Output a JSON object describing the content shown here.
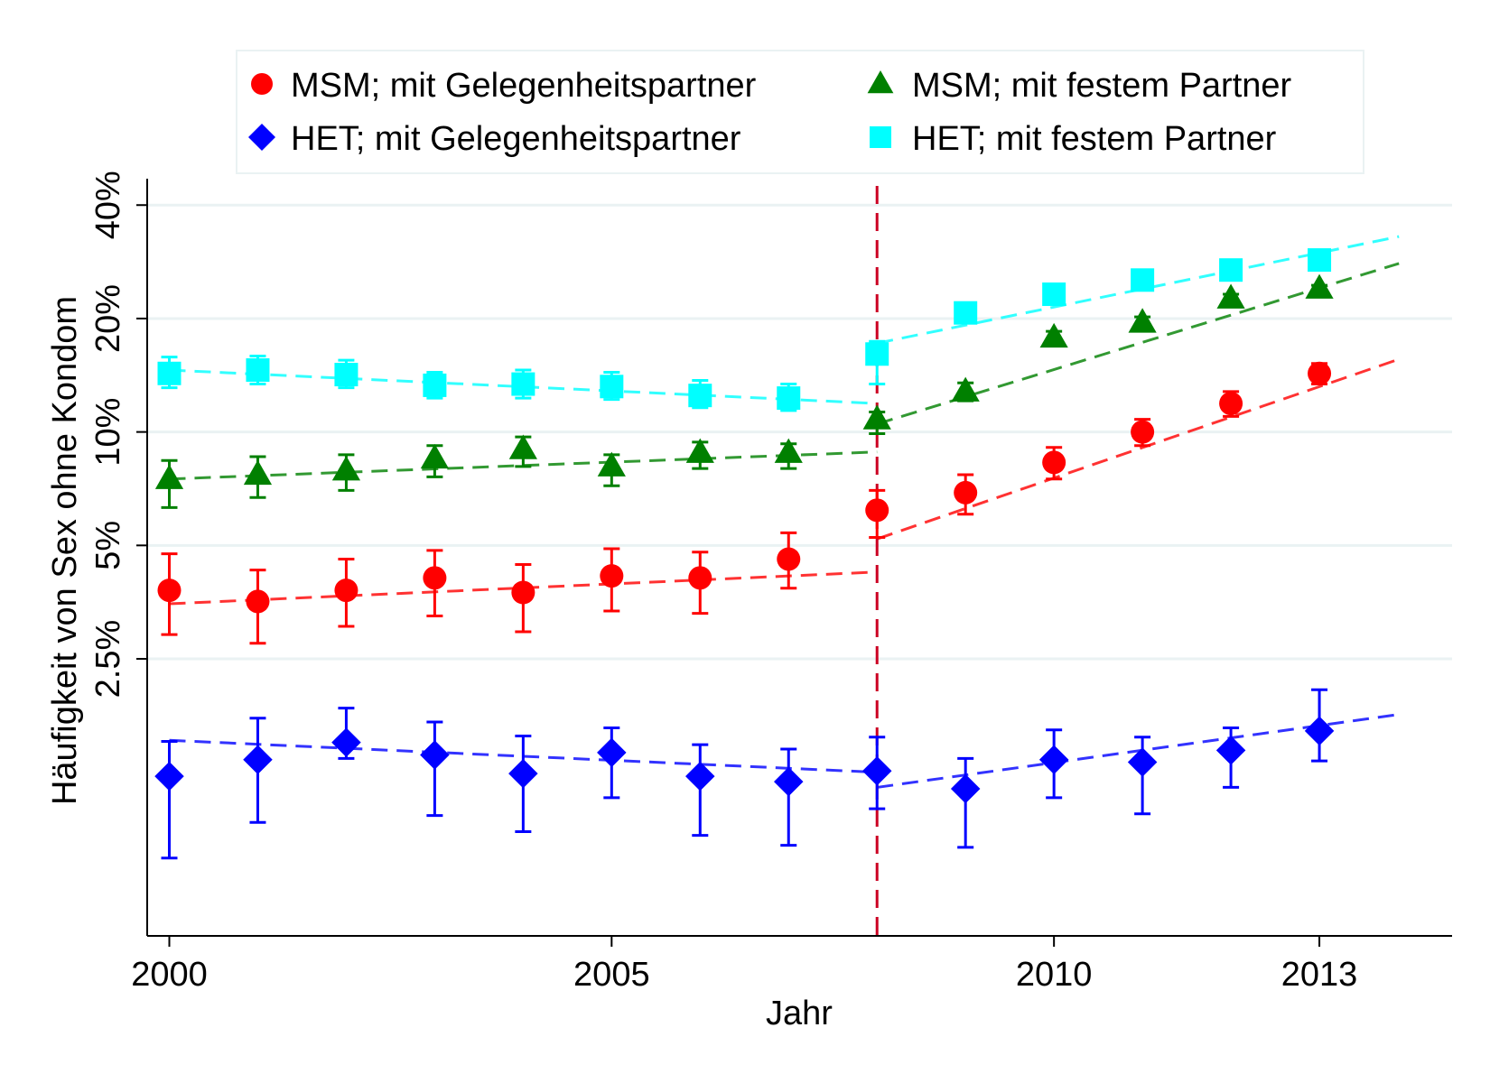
{
  "chart_data": {
    "type": "scatter",
    "xlabel": "Jahr",
    "ylabel": "Häufigkeit von Sex ohne Kondom",
    "x_ticks": [
      2000,
      2005,
      2010,
      2013
    ],
    "x_tick_labels": [
      "2000",
      "2005",
      "2010",
      "2013"
    ],
    "y_ticks": [
      2.5,
      5,
      10,
      20,
      40
    ],
    "y_tick_labels": [
      "2.5%",
      "5%",
      "10%",
      "20%",
      "40%"
    ],
    "y_scale": "log",
    "xlim": [
      1999.75,
      2014.5
    ],
    "ylim": [
      0.46,
      47
    ],
    "grid": true,
    "legend_position": "top",
    "vline": {
      "x": 2008,
      "color": "#cc0022",
      "style": "dashed"
    },
    "series": [
      {
        "name": "MSM; mit Gelegenheitspartner",
        "marker": "circle",
        "color": "#ff0000",
        "x": [
          2000,
          2001,
          2002,
          2003,
          2004,
          2005,
          2006,
          2007,
          2008,
          2009,
          2010,
          2011,
          2012,
          2013
        ],
        "y": [
          3.8,
          3.55,
          3.8,
          4.1,
          3.75,
          4.15,
          4.1,
          4.6,
          6.2,
          6.9,
          8.3,
          10.0,
          11.9,
          14.3
        ],
        "lower": [
          2.9,
          2.75,
          3.05,
          3.25,
          2.95,
          3.35,
          3.3,
          3.85,
          5.25,
          6.05,
          7.5,
          9.2,
          11.0,
          13.4
        ],
        "upper": [
          4.75,
          4.3,
          4.6,
          4.85,
          4.45,
          4.9,
          4.8,
          5.4,
          7.0,
          7.7,
          9.1,
          10.8,
          12.8,
          15.2
        ],
        "fit": [
          {
            "x": [
              2000,
              2008
            ],
            "y": [
              3.5,
              4.25
            ]
          },
          {
            "x": [
              2008,
              2013.9
            ],
            "y": [
              5.2,
              15.6
            ]
          }
        ]
      },
      {
        "name": "MSM; mit festem Partner",
        "marker": "triangle",
        "color": "#008000",
        "x": [
          2000,
          2001,
          2002,
          2003,
          2004,
          2005,
          2006,
          2007,
          2008,
          2009,
          2010,
          2011,
          2012,
          2013
        ],
        "y": [
          7.5,
          7.7,
          7.9,
          8.5,
          9.0,
          8.1,
          8.8,
          8.8,
          10.8,
          12.8,
          17.8,
          19.5,
          22.6,
          24.0
        ],
        "lower": [
          6.3,
          6.7,
          7.0,
          7.6,
          8.1,
          7.2,
          8.0,
          8.0,
          9.9,
          12.1,
          17.1,
          18.8,
          22.0,
          23.5
        ],
        "upper": [
          8.4,
          8.6,
          8.7,
          9.2,
          9.7,
          8.7,
          9.4,
          9.3,
          11.3,
          13.5,
          18.5,
          20.2,
          23.2,
          24.5
        ],
        "fit": [
          {
            "x": [
              2000,
              2008
            ],
            "y": [
              7.5,
              8.85
            ]
          },
          {
            "x": [
              2008,
              2013.9
            ],
            "y": [
              10.5,
              28.0
            ]
          }
        ]
      },
      {
        "name": "HET; mit Gelegenheitspartner",
        "marker": "diamond",
        "color": "#0000ff",
        "x": [
          2000,
          2001,
          2002,
          2003,
          2004,
          2005,
          2006,
          2007,
          2008,
          2009,
          2010,
          2011,
          2012,
          2013
        ],
        "y": [
          1.22,
          1.35,
          1.5,
          1.39,
          1.24,
          1.41,
          1.22,
          1.18,
          1.26,
          1.13,
          1.35,
          1.33,
          1.43,
          1.61
        ],
        "lower": [
          0.74,
          0.92,
          1.36,
          0.96,
          0.87,
          1.07,
          0.85,
          0.8,
          1.0,
          0.79,
          1.07,
          0.97,
          1.14,
          1.34
        ],
        "upper": [
          1.51,
          1.74,
          1.85,
          1.7,
          1.56,
          1.64,
          1.48,
          1.44,
          1.55,
          1.36,
          1.62,
          1.55,
          1.64,
          2.07
        ],
        "fit": [
          {
            "x": [
              2000,
              2008
            ],
            "y": [
              1.52,
              1.25
            ]
          },
          {
            "x": [
              2008,
              2013.9
            ],
            "y": [
              1.14,
              1.78
            ]
          }
        ]
      },
      {
        "name": "HET; mit festem Partner",
        "marker": "square",
        "color": "#00ffff",
        "x": [
          2000,
          2001,
          2002,
          2003,
          2004,
          2005,
          2006,
          2007,
          2008,
          2009,
          2010,
          2011,
          2012,
          2013
        ],
        "y": [
          14.3,
          14.6,
          14.2,
          13.3,
          13.4,
          13.2,
          12.5,
          12.3,
          16.1,
          20.7,
          23.2,
          25.3,
          26.9,
          28.6
        ],
        "lower": [
          13.1,
          13.4,
          13.1,
          12.3,
          12.3,
          12.2,
          11.6,
          11.4,
          13.4,
          20.2,
          22.7,
          24.8,
          26.4,
          28.1
        ],
        "upper": [
          15.8,
          15.9,
          15.5,
          14.4,
          14.6,
          14.4,
          13.7,
          13.4,
          17.4,
          21.2,
          23.7,
          25.8,
          27.4,
          29.1
        ],
        "fit": [
          {
            "x": [
              2000,
              2008
            ],
            "y": [
              14.6,
              11.9
            ]
          },
          {
            "x": [
              2008,
              2013.9
            ],
            "y": [
              17.2,
              33.0
            ]
          }
        ]
      }
    ]
  }
}
